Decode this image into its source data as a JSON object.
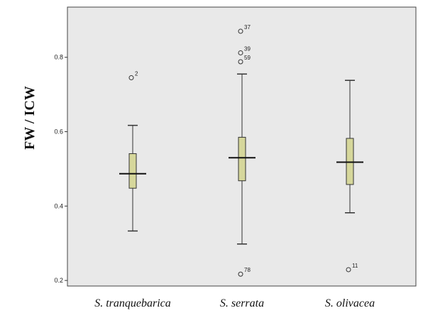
{
  "chart_data": {
    "type": "box",
    "ylabel": "FW / ICW",
    "xlabel": "",
    "categories": [
      "S. tranquebarica",
      "S. serrata",
      "S. olivacea"
    ],
    "ylim": [
      0.185,
      0.935
    ],
    "yticks": [
      0.2,
      0.4,
      0.6,
      0.8
    ],
    "ytick_labels": [
      "0.2",
      "0.4",
      "0.6",
      "0.8"
    ],
    "grid": false,
    "colors": {
      "plot_bg": "#e9e9e9",
      "box_fill": "#d6d79b",
      "border": "#333333",
      "median": "#111111"
    },
    "boxes": [
      {
        "category": "S. tranquebarica",
        "whisker_low": 0.333,
        "q1": 0.448,
        "median": 0.487,
        "q3": 0.541,
        "whisker_high": 0.617,
        "outliers": [
          {
            "label": "2",
            "value": 0.745
          }
        ]
      },
      {
        "category": "S. serrata",
        "whisker_low": 0.298,
        "q1": 0.468,
        "median": 0.53,
        "q3": 0.585,
        "whisker_high": 0.755,
        "outliers": [
          {
            "label": "37",
            "value": 0.87
          },
          {
            "label": "39",
            "value": 0.812
          },
          {
            "label": "59",
            "value": 0.788
          },
          {
            "label": "78",
            "value": 0.217
          }
        ]
      },
      {
        "category": "S. olivacea",
        "whisker_low": 0.382,
        "q1": 0.458,
        "median": 0.518,
        "q3": 0.582,
        "whisker_high": 0.738,
        "outliers": [
          {
            "label": "11",
            "value": 0.229
          }
        ]
      }
    ]
  }
}
